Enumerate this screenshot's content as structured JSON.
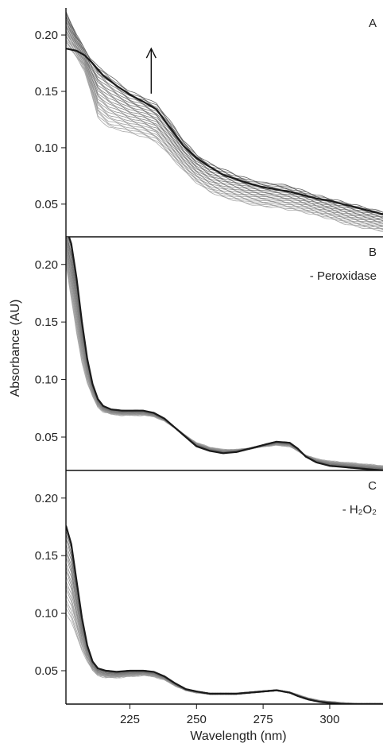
{
  "figure": {
    "ylabel": "Absorbance (AU)",
    "xlabel": "Wavelength (nm)"
  },
  "chart_data": [
    {
      "type": "line",
      "panel_label": "A",
      "annotation": "",
      "arrow": {
        "at_x": 233,
        "from_y": 0.148,
        "to_y": 0.188
      },
      "xlim": [
        201,
        320
      ],
      "ylim": [
        0.021,
        0.224
      ],
      "xticks": [],
      "yticks": [
        "0.05",
        "0.10",
        "0.15",
        "0.20"
      ],
      "n_traces": 26,
      "highlight_index": 22,
      "first_trace": {
        "x": [
          201,
          205,
          208,
          210,
          213,
          217,
          221,
          225,
          230,
          235,
          240,
          245,
          250,
          255,
          260,
          265,
          270,
          275,
          280,
          285,
          290,
          295,
          300,
          305,
          310,
          315,
          320
        ],
        "y": [
          0.192,
          0.18,
          0.168,
          0.152,
          0.127,
          0.118,
          0.116,
          0.113,
          0.11,
          0.105,
          0.093,
          0.08,
          0.069,
          0.061,
          0.056,
          0.053,
          0.05,
          0.048,
          0.047,
          0.045,
          0.043,
          0.04,
          0.037,
          0.033,
          0.03,
          0.028,
          0.026
        ]
      },
      "last_trace": {
        "x": [
          201,
          205,
          208,
          210,
          213,
          217,
          221,
          225,
          230,
          235,
          240,
          245,
          250,
          255,
          260,
          265,
          270,
          275,
          280,
          285,
          290,
          295,
          300,
          305,
          310,
          315,
          320
        ],
        "y": [
          0.221,
          0.2,
          0.188,
          0.18,
          0.172,
          0.165,
          0.157,
          0.15,
          0.145,
          0.139,
          0.124,
          0.107,
          0.094,
          0.086,
          0.081,
          0.076,
          0.072,
          0.069,
          0.068,
          0.066,
          0.062,
          0.058,
          0.055,
          0.052,
          0.049,
          0.046,
          0.043
        ]
      },
      "highlight_trace": {
        "x": [
          201,
          205,
          208,
          211,
          215,
          220,
          225,
          230,
          235,
          240,
          245,
          250,
          255,
          260,
          265,
          270,
          275,
          280,
          285,
          290,
          295,
          300,
          305,
          310,
          315,
          320
        ],
        "y": [
          0.188,
          0.186,
          0.182,
          0.175,
          0.164,
          0.155,
          0.147,
          0.141,
          0.134,
          0.118,
          0.102,
          0.091,
          0.083,
          0.076,
          0.072,
          0.068,
          0.065,
          0.063,
          0.061,
          0.058,
          0.055,
          0.053,
          0.05,
          0.047,
          0.044,
          0.041
        ]
      }
    },
    {
      "type": "line",
      "panel_label": "B",
      "annotation": "- Peroxidase",
      "xlim": [
        201,
        320
      ],
      "ylim": [
        0.021,
        0.224
      ],
      "xticks": [],
      "yticks": [
        "0.05",
        "0.10",
        "0.15",
        "0.20"
      ],
      "n_traces": 22,
      "highlight_index": 21,
      "first_trace": {
        "x": [
          201,
          203,
          205,
          207,
          209,
          211,
          213,
          215,
          218,
          222,
          226,
          230,
          234,
          238,
          242,
          246,
          250,
          255,
          260,
          265,
          270,
          275,
          280,
          285,
          288,
          291,
          295,
          300,
          305,
          310,
          315,
          320
        ],
        "y": [
          0.2,
          0.17,
          0.14,
          0.115,
          0.097,
          0.085,
          0.076,
          0.072,
          0.07,
          0.069,
          0.069,
          0.069,
          0.068,
          0.064,
          0.058,
          0.051,
          0.045,
          0.041,
          0.039,
          0.039,
          0.04,
          0.042,
          0.043,
          0.042,
          0.038,
          0.034,
          0.031,
          0.029,
          0.028,
          0.027,
          0.026,
          0.025
        ]
      },
      "last_trace": {
        "x": [
          201,
          203,
          205,
          207,
          209,
          211,
          213,
          215,
          218,
          222,
          226,
          230,
          234,
          238,
          242,
          246,
          250,
          255,
          260,
          265,
          270,
          275,
          280,
          285,
          288,
          291,
          295,
          300,
          305,
          310,
          315,
          320
        ],
        "y": [
          0.232,
          0.218,
          0.188,
          0.15,
          0.118,
          0.096,
          0.083,
          0.077,
          0.074,
          0.073,
          0.073,
          0.073,
          0.071,
          0.066,
          0.058,
          0.05,
          0.042,
          0.038,
          0.036,
          0.037,
          0.04,
          0.043,
          0.046,
          0.045,
          0.04,
          0.033,
          0.028,
          0.025,
          0.024,
          0.023,
          0.022,
          0.021
        ]
      },
      "highlight_trace": {
        "x": [
          201,
          203,
          205,
          207,
          209,
          211,
          213,
          215,
          218,
          222,
          226,
          230,
          234,
          238,
          242,
          246,
          250,
          255,
          260,
          265,
          270,
          275,
          280,
          285,
          288,
          291,
          295,
          300,
          305,
          310,
          315,
          320
        ],
        "y": [
          0.232,
          0.218,
          0.188,
          0.15,
          0.118,
          0.096,
          0.083,
          0.077,
          0.074,
          0.073,
          0.073,
          0.073,
          0.071,
          0.066,
          0.058,
          0.05,
          0.042,
          0.038,
          0.036,
          0.037,
          0.04,
          0.043,
          0.046,
          0.045,
          0.04,
          0.033,
          0.028,
          0.025,
          0.024,
          0.023,
          0.022,
          0.021
        ]
      }
    },
    {
      "type": "line",
      "panel_label": "C",
      "annotation": "- H₂O₂",
      "xlim": [
        201,
        320
      ],
      "ylim": [
        0.021,
        0.224
      ],
      "xticks": [
        "225",
        "250",
        "275",
        "300"
      ],
      "yticks": [
        "0.05",
        "0.10",
        "0.15",
        "0.20"
      ],
      "n_traces": 20,
      "highlight_index": 19,
      "first_trace": {
        "x": [
          201,
          203,
          205,
          207,
          209,
          211,
          213,
          216,
          220,
          225,
          230,
          234,
          238,
          242,
          246,
          250,
          255,
          260,
          265,
          270,
          275,
          280,
          285,
          288,
          292,
          296,
          300,
          305,
          310,
          315,
          320
        ],
        "y": [
          0.1,
          0.092,
          0.08,
          0.068,
          0.058,
          0.05,
          0.046,
          0.044,
          0.044,
          0.045,
          0.046,
          0.045,
          0.042,
          0.037,
          0.033,
          0.031,
          0.03,
          0.03,
          0.03,
          0.031,
          0.032,
          0.033,
          0.031,
          0.029,
          0.026,
          0.024,
          0.023,
          0.022,
          0.021,
          0.021,
          0.021
        ]
      },
      "last_trace": {
        "x": [
          201,
          203,
          205,
          207,
          209,
          211,
          213,
          216,
          220,
          225,
          230,
          234,
          238,
          242,
          246,
          250,
          255,
          260,
          265,
          270,
          275,
          280,
          285,
          288,
          292,
          296,
          300,
          305,
          310,
          315,
          320
        ],
        "y": [
          0.176,
          0.16,
          0.128,
          0.096,
          0.072,
          0.058,
          0.052,
          0.05,
          0.049,
          0.05,
          0.05,
          0.049,
          0.045,
          0.039,
          0.034,
          0.032,
          0.03,
          0.03,
          0.03,
          0.031,
          0.032,
          0.033,
          0.031,
          0.028,
          0.025,
          0.023,
          0.022,
          0.021,
          0.021,
          0.021,
          0.021
        ]
      },
      "highlight_trace": {
        "x": [
          201,
          203,
          205,
          207,
          209,
          211,
          213,
          216,
          220,
          225,
          230,
          234,
          238,
          242,
          246,
          250,
          255,
          260,
          265,
          270,
          275,
          280,
          285,
          288,
          292,
          296,
          300,
          305,
          310,
          315,
          320
        ],
        "y": [
          0.176,
          0.16,
          0.128,
          0.096,
          0.072,
          0.058,
          0.052,
          0.05,
          0.049,
          0.05,
          0.05,
          0.049,
          0.045,
          0.039,
          0.034,
          0.032,
          0.03,
          0.03,
          0.03,
          0.031,
          0.032,
          0.033,
          0.031,
          0.028,
          0.025,
          0.023,
          0.022,
          0.021,
          0.021,
          0.021,
          0.021
        ]
      }
    }
  ]
}
